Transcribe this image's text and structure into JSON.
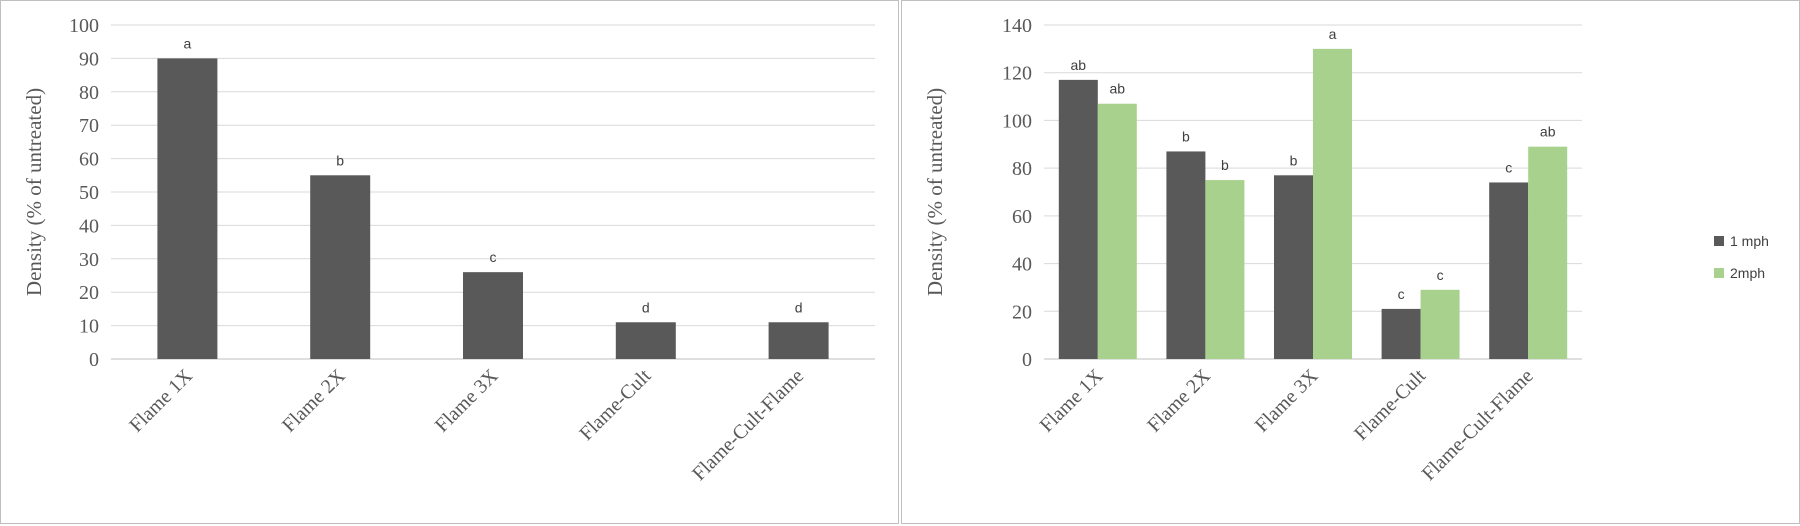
{
  "chart_data": [
    {
      "type": "bar",
      "title": "",
      "xlabel": "",
      "ylabel": "Density  (% of untreated)",
      "ylim": [
        0,
        100
      ],
      "ytick_step": 10,
      "grid": true,
      "categories": [
        "Flame 1X",
        "Flame 2X",
        "Flame 3X",
        "Flame-Cult",
        "Flame-Cult-Flame"
      ],
      "series": [
        {
          "color": "#595959",
          "values": [
            90,
            55,
            26,
            11,
            11
          ],
          "labels": [
            "a",
            "b",
            "c",
            "d",
            "d"
          ]
        }
      ]
    },
    {
      "type": "bar",
      "title": "",
      "xlabel": "",
      "ylabel": "Density  (% of untreated)",
      "ylim": [
        0,
        140
      ],
      "ytick_step": 20,
      "grid": true,
      "legend_position": "right",
      "categories": [
        "Flame 1X",
        "Flame 2X",
        "Flame 3X",
        "Flame-Cult",
        "Flame-Cult-Flame"
      ],
      "series": [
        {
          "name": "1 mph",
          "color": "#595959",
          "values": [
            117,
            87,
            77,
            21,
            74
          ],
          "labels": [
            "ab",
            "b",
            "b",
            "c",
            "c"
          ]
        },
        {
          "name": "2mph",
          "color": "#a9d18e",
          "values": [
            107,
            75,
            130,
            29,
            89
          ],
          "labels": [
            "ab",
            "b",
            "a",
            "c",
            "ab"
          ]
        }
      ]
    }
  ]
}
